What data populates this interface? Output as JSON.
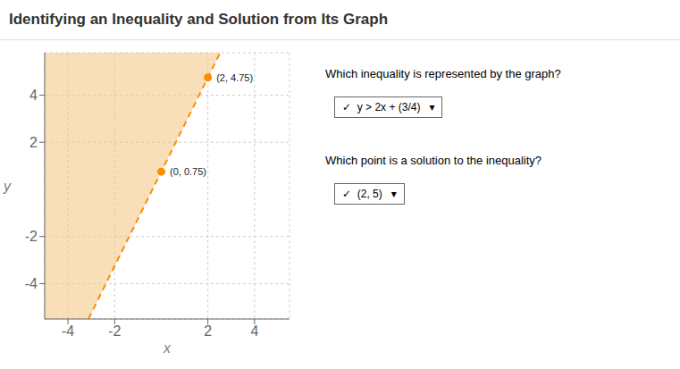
{
  "chart_data": {
    "type": "scatter",
    "title": "Identifying an Inequality and Solution from Its Graph",
    "xlabel": "x",
    "ylabel": "y",
    "xlim": [
      -5,
      5.5
    ],
    "ylim": [
      -5.5,
      5.8
    ],
    "xticks": [
      -4,
      -2,
      2,
      4
    ],
    "yticks": [
      -4,
      -2,
      2,
      4
    ],
    "grid": true,
    "series": [
      {
        "type": "area",
        "color": "#F5C98A",
        "x": [
          -5,
          -3.125,
          2.525
        ],
        "values": [
          -5.5,
          -5.5,
          5.8
        ]
      },
      {
        "type": "line",
        "color": "#FF8C00",
        "line_style": "dashed",
        "x": [
          -3.125,
          2.525
        ],
        "values": [
          -5.5,
          5.8
        ]
      },
      {
        "type": "scatter",
        "color": "#FF8C00",
        "x": [
          0,
          2
        ],
        "values": [
          0.75,
          4.75
        ],
        "data_labels": true,
        "value_labels": [
          "(0, 0.75)",
          "(2, 4.75)"
        ]
      }
    ],
    "annotations": [
      "Which inequality is represented by the graph?",
      "✓  y > 2x + (3/4)   ▾",
      "Which point is a solution to the inequality?",
      "✓  (2, 5)   ▾"
    ]
  }
}
